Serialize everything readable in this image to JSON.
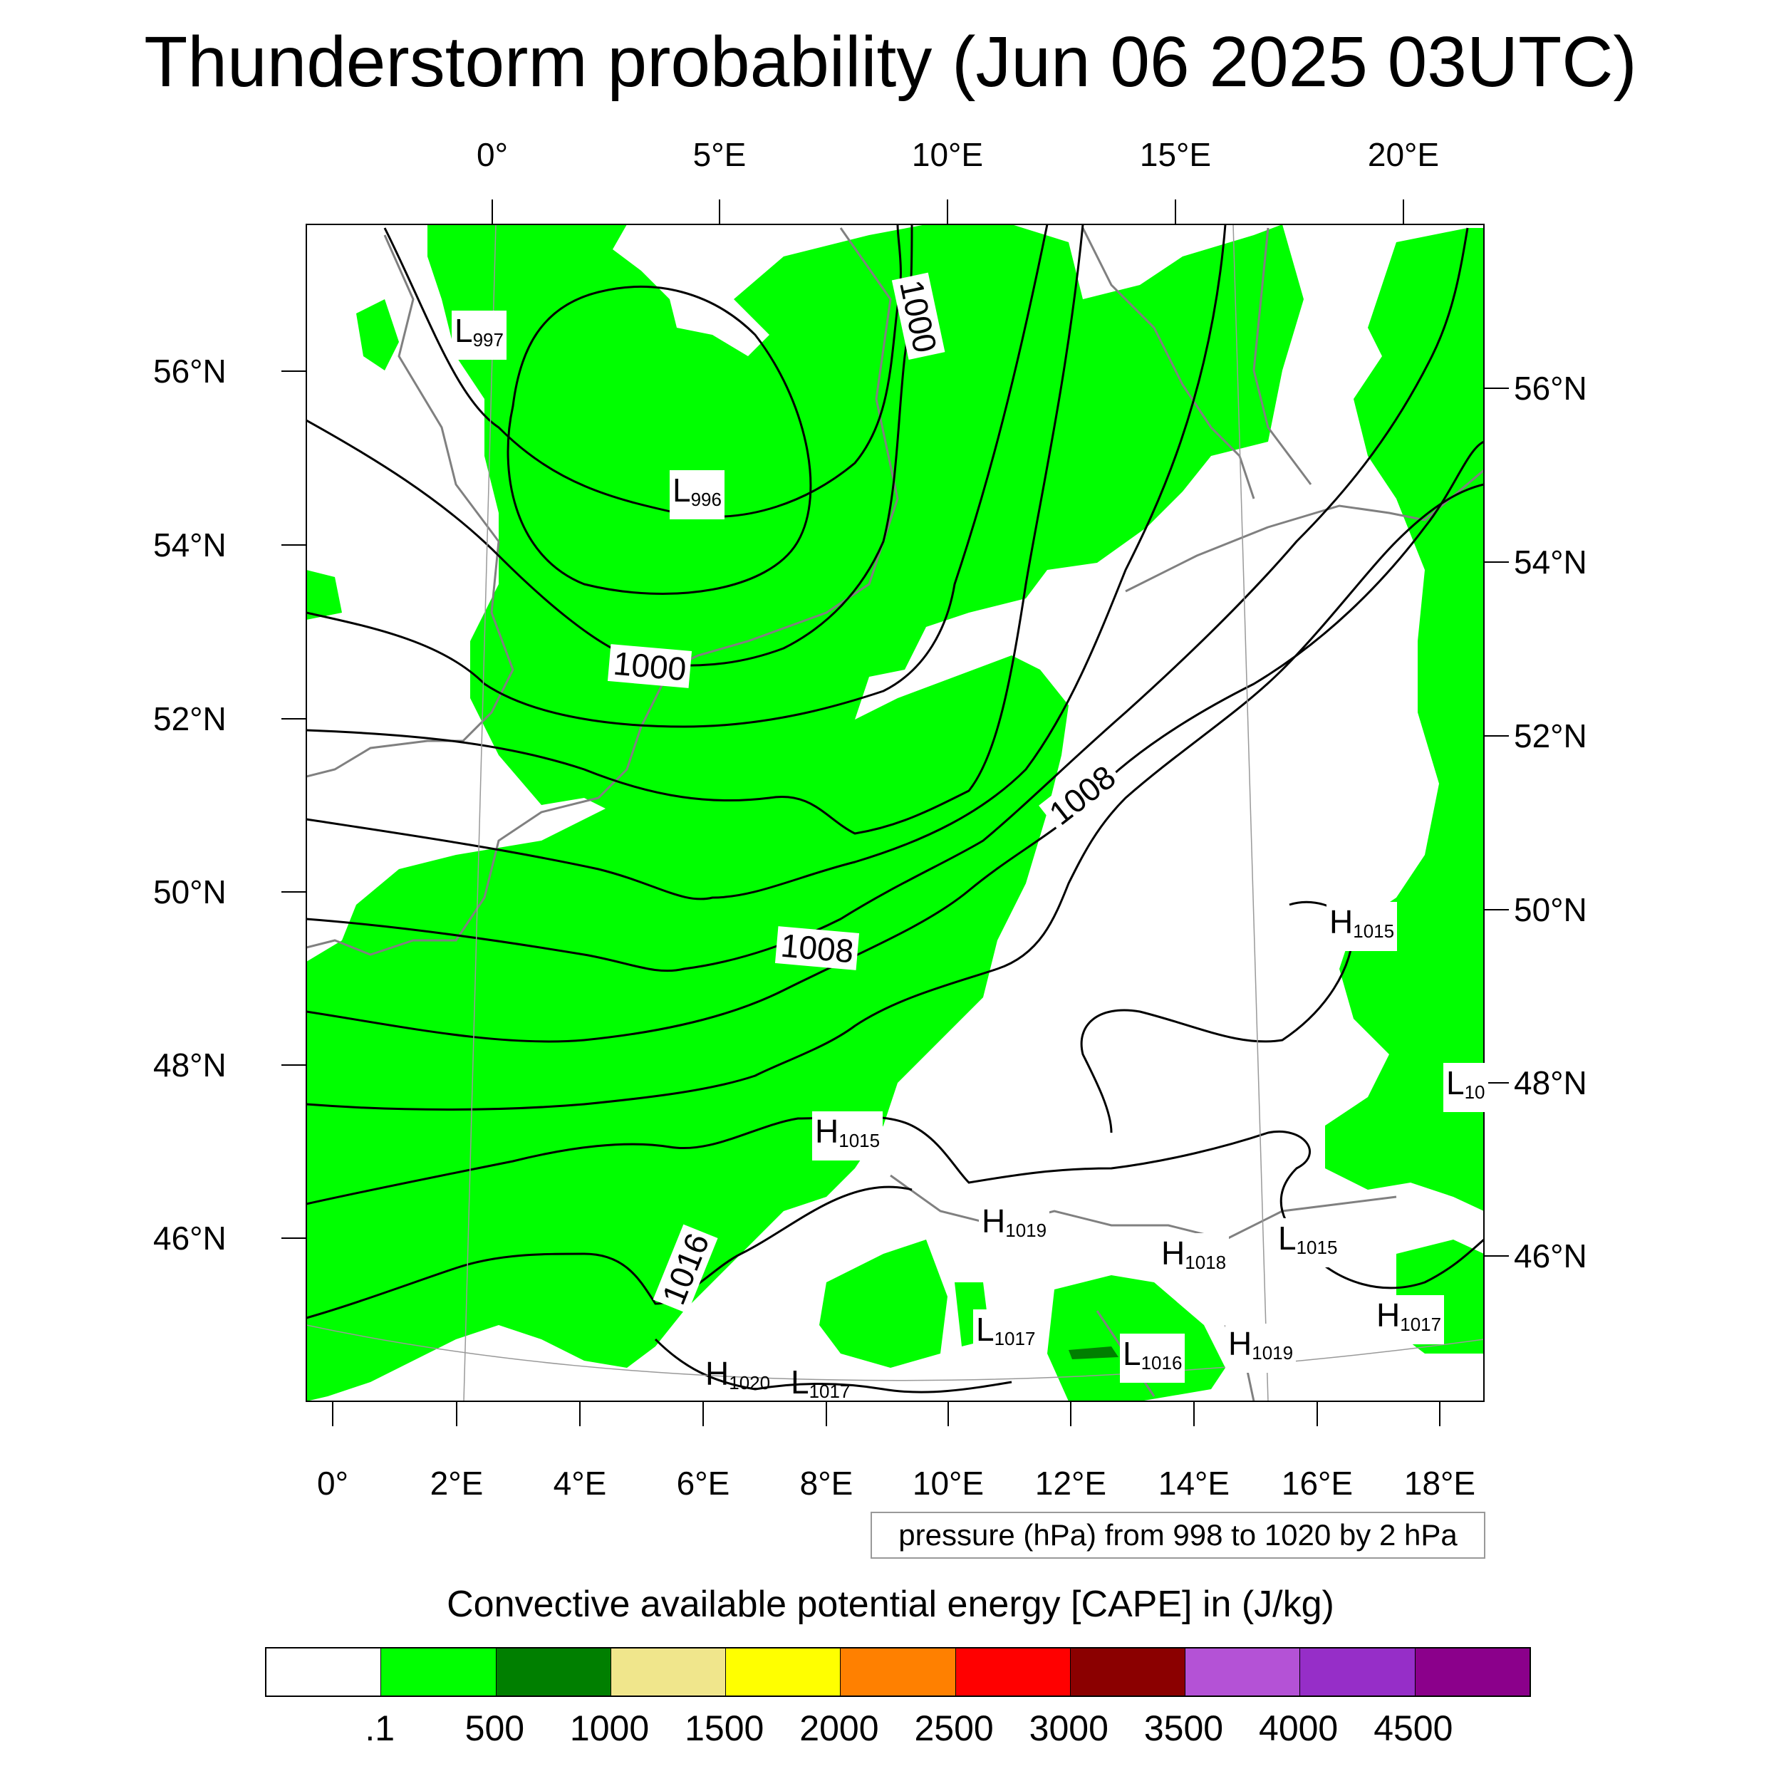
{
  "title": "Thunderstorm probability (Jun 06 2025 03UTC)",
  "axes": {
    "top_lon_labels": [
      "0°",
      "5°E",
      "10°E",
      "15°E",
      "20°E"
    ],
    "bottom_lon_labels": [
      "0°",
      "2°E",
      "4°E",
      "6°E",
      "8°E",
      "10°E",
      "12°E",
      "14°E",
      "16°E",
      "18°E"
    ],
    "left_lat_labels": [
      "56°N",
      "54°N",
      "52°N",
      "50°N",
      "48°N",
      "46°N"
    ],
    "right_lat_labels": [
      "56°N",
      "54°N",
      "52°N",
      "50°N",
      "48°N",
      "46°N"
    ]
  },
  "pressure_note": "pressure (hPa) from 998 to 1020 by 2 hPa",
  "isobar_labels": [
    "1000",
    "1000",
    "1008",
    "1008",
    "1016"
  ],
  "pressure_centers": [
    {
      "type": "L",
      "value": "997"
    },
    {
      "type": "L",
      "value": "996"
    },
    {
      "type": "H",
      "value": "1015"
    },
    {
      "type": "H",
      "value": "1015"
    },
    {
      "type": "L",
      "value": "10"
    },
    {
      "type": "H",
      "value": "1019"
    },
    {
      "type": "H",
      "value": "1018"
    },
    {
      "type": "L",
      "value": "1015"
    },
    {
      "type": "H",
      "value": "1017"
    },
    {
      "type": "L",
      "value": "1017"
    },
    {
      "type": "L",
      "value": "1016"
    },
    {
      "type": "H",
      "value": "1019"
    },
    {
      "type": "H",
      "value": "1020"
    },
    {
      "type": "L",
      "value": "1017"
    }
  ],
  "colorbar": {
    "title": "Convective available potential energy [CAPE] in (J/kg)",
    "colors": [
      "#ffffff",
      "#00ff00",
      "#007f00",
      "#f0e68c",
      "#ffff00",
      "#ff8000",
      "#ff0000",
      "#8b0000",
      "#b452d6",
      "#962ec8",
      "#8b008b"
    ],
    "labels": [
      ".1",
      "500",
      "1000",
      "1500",
      "2000",
      "2500",
      "3000",
      "3500",
      "4000",
      "4500"
    ]
  },
  "colors": {
    "cape_low": "#00ff00",
    "cape_mid": "#007f00",
    "coastline": "#808080",
    "isobar": "#000000"
  }
}
